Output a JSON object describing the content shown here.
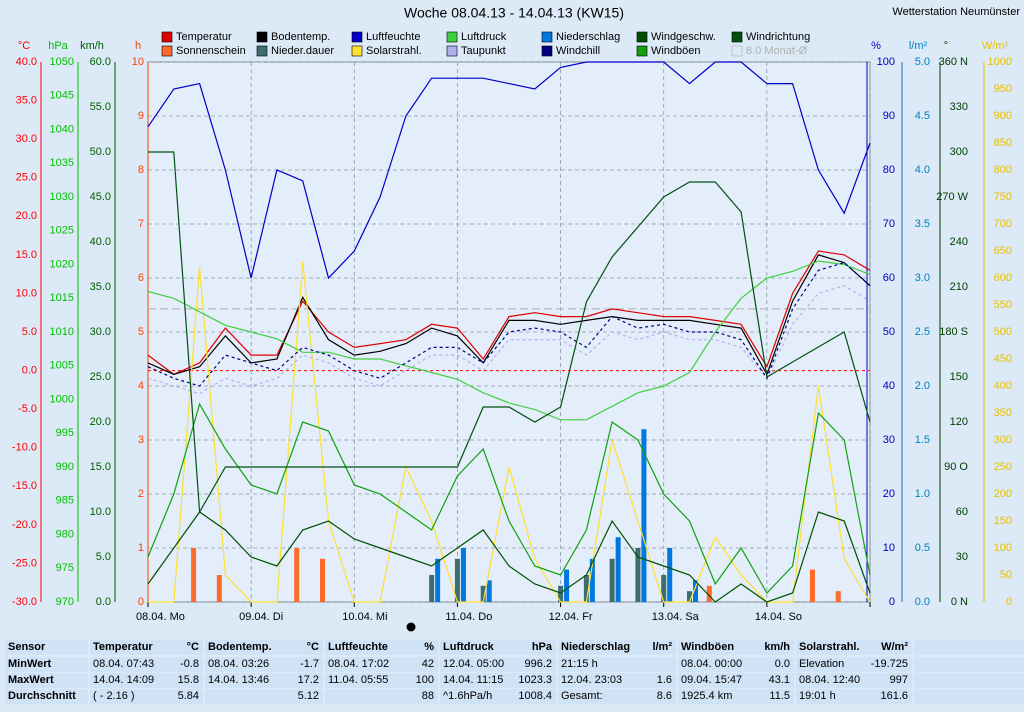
{
  "chart_data": {
    "type": "line",
    "title": "Woche 08.04.13 - 14.04.13 (KW15)",
    "station": "Wetterstation Neumünster",
    "xlim": [
      0,
      7
    ],
    "xticks": [
      {
        "value": 0,
        "label": "08.04. Mo"
      },
      {
        "value": 1,
        "label": "09.04. Di"
      },
      {
        "value": 2,
        "label": "10.04. Mi"
      },
      {
        "value": 3,
        "label": "11.04. Do"
      },
      {
        "value": 4,
        "label": "12.04. Fr"
      },
      {
        "value": 5,
        "label": "13.04. Sa"
      },
      {
        "value": 6,
        "label": "14.04. So"
      },
      {
        "value": 7,
        "label": ""
      }
    ],
    "grid": true,
    "axes": [
      {
        "unit": "°C",
        "side": "left",
        "color": "#ff0000",
        "lim": [
          -30,
          40
        ],
        "ticks": [
          {
            "value": 40,
            "label": "40.0"
          },
          {
            "value": 35,
            "label": "35.0"
          },
          {
            "value": 30,
            "label": "30.0"
          },
          {
            "value": 25,
            "label": "25.0"
          },
          {
            "value": 20,
            "label": "20.0"
          },
          {
            "value": 15,
            "label": "15.0"
          },
          {
            "value": 10,
            "label": "10.0"
          },
          {
            "value": 5,
            "label": "5.0"
          },
          {
            "value": 0,
            "label": "0.0"
          },
          {
            "value": -5,
            "label": "-5.0"
          },
          {
            "value": -10,
            "label": "-10.0"
          },
          {
            "value": -15,
            "label": "-15.0"
          },
          {
            "value": -20,
            "label": "-20.0"
          },
          {
            "value": -25,
            "label": "-25.0"
          },
          {
            "value": -30,
            "label": "-30.0"
          }
        ]
      },
      {
        "unit": "hPa",
        "side": "left",
        "color": "#00c000",
        "lim": [
          970,
          1050
        ],
        "ticks": [
          1050,
          1045,
          1040,
          1035,
          1030,
          1025,
          1020,
          1015,
          1010,
          1005,
          1000,
          995,
          990,
          985,
          980,
          975,
          970
        ]
      },
      {
        "unit": "km/h",
        "side": "left",
        "color": "#006000",
        "lim": [
          0,
          60
        ],
        "ticks": [
          {
            "value": 60,
            "label": "60.0"
          },
          {
            "value": 55,
            "label": "55.0"
          },
          {
            "value": 50,
            "label": "50.0"
          },
          {
            "value": 45,
            "label": "45.0"
          },
          {
            "value": 40,
            "label": "40.0"
          },
          {
            "value": 35,
            "label": "35.0"
          },
          {
            "value": 30,
            "label": "30.0"
          },
          {
            "value": 25,
            "label": "25.0"
          },
          {
            "value": 20,
            "label": "20.0"
          },
          {
            "value": 15,
            "label": "15.0"
          },
          {
            "value": 10,
            "label": "10.0"
          },
          {
            "value": 5,
            "label": "5.0"
          },
          {
            "value": 0,
            "label": "0.0"
          }
        ]
      },
      {
        "unit": "h",
        "side": "left",
        "color": "#ff4000",
        "lim": [
          0,
          10
        ],
        "ticks": [
          10,
          9,
          8,
          7,
          6,
          5,
          4,
          3,
          2,
          1,
          0
        ]
      },
      {
        "unit": "%",
        "side": "right",
        "color": "#0000c0",
        "lim": [
          0,
          100
        ],
        "ticks": [
          100,
          90,
          80,
          70,
          60,
          50,
          40,
          30,
          20,
          10,
          0
        ]
      },
      {
        "unit": "l/m²",
        "side": "right",
        "color": "#0080c0",
        "lim": [
          0,
          5
        ],
        "ticks": [
          {
            "value": 5,
            "label": "5.0"
          },
          4.5,
          {
            "value": 4,
            "label": "4.0"
          },
          3.5,
          {
            "value": 3,
            "label": "3.0"
          },
          2.5,
          {
            "value": 2,
            "label": "2.0"
          },
          1.5,
          {
            "value": 1,
            "label": "1.0"
          },
          0.5,
          {
            "value": 0,
            "label": "0.0"
          }
        ]
      },
      {
        "unit": "°",
        "side": "right",
        "color": "#004000",
        "lim": [
          0,
          360
        ],
        "ticks": [
          {
            "value": 360,
            "label": "360 N"
          },
          330,
          300,
          {
            "value": 270,
            "label": "270 W"
          },
          240,
          210,
          {
            "value": 180,
            "label": "180 S"
          },
          150,
          120,
          {
            "value": 90,
            "label": "90 O"
          },
          60,
          30,
          {
            "value": 0,
            "label": "0 N"
          }
        ]
      },
      {
        "unit": "W/m²",
        "side": "right",
        "color": "#e8c000",
        "lim": [
          0,
          1000
        ],
        "ticks": [
          1000,
          950,
          900,
          850,
          800,
          750,
          700,
          650,
          600,
          550,
          500,
          450,
          400,
          350,
          300,
          250,
          200,
          150,
          100,
          50,
          0
        ]
      }
    ],
    "x": [
      0,
      0.25,
      0.5,
      0.75,
      1,
      1.25,
      1.5,
      1.75,
      2,
      2.25,
      2.5,
      2.75,
      3,
      3.25,
      3.5,
      3.75,
      4,
      4.25,
      4.5,
      4.75,
      5,
      5.25,
      5.5,
      5.75,
      6,
      6.25,
      6.5,
      6.75,
      7
    ],
    "series": [
      {
        "name": "Temperatur",
        "color": "#e00000",
        "axis": "°C",
        "style": "line",
        "values": [
          2,
          -0.5,
          1,
          5.5,
          2,
          2,
          9,
          5,
          3,
          3.5,
          4,
          6,
          5.5,
          1.5,
          7,
          7.5,
          7,
          7,
          8,
          7.5,
          7,
          7,
          6.5,
          6,
          0.5,
          10,
          15.5,
          15,
          13
        ]
      },
      {
        "name": "Sonnenschein",
        "color": "#ff6a2a",
        "axis": "h",
        "style": "bar",
        "values": [
          0,
          0,
          1,
          0.5,
          0,
          0,
          1,
          0.8,
          0,
          0,
          0,
          0,
          0,
          0,
          0,
          0,
          0,
          0,
          0,
          0,
          0,
          0,
          0.3,
          0,
          0,
          0,
          0.6,
          0.2,
          0
        ]
      },
      {
        "name": "Bodentemp.",
        "color": "#000000",
        "axis": "°C",
        "style": "line",
        "values": [
          1,
          -0.5,
          0.5,
          4.5,
          1,
          1.5,
          9.5,
          4,
          2,
          2.5,
          3.5,
          5.5,
          4.5,
          1,
          6.5,
          6.5,
          6,
          6.5,
          7,
          6.5,
          6.5,
          6.5,
          6,
          5.5,
          -0.5,
          9,
          15,
          14,
          11
        ]
      },
      {
        "name": "Nieder.dauer",
        "color": "#3c6e6e",
        "axis": "h",
        "style": "bar",
        "values": [
          0,
          0,
          0,
          0,
          0,
          0,
          0,
          0,
          0,
          0,
          0,
          0.5,
          0.8,
          0.3,
          0,
          0,
          0.3,
          0.5,
          0.8,
          1,
          0.5,
          0.2,
          0,
          0,
          0,
          0,
          0,
          0,
          0
        ]
      },
      {
        "name": "Luftfeuchte",
        "color": "#0000c8",
        "axis": "%",
        "style": "line",
        "values": [
          88,
          95,
          96,
          80,
          60,
          80,
          78,
          60,
          65,
          75,
          90,
          97,
          97,
          97,
          96,
          95,
          99,
          100,
          100,
          100,
          100,
          96,
          100,
          100,
          96,
          96,
          80,
          72,
          85
        ]
      },
      {
        "name": "Solarstrahl.",
        "color": "#ffe030",
        "axis": "W/m²",
        "style": "line",
        "values": [
          0,
          0,
          620,
          50,
          0,
          0,
          630,
          150,
          0,
          0,
          250,
          150,
          0,
          0,
          250,
          80,
          0,
          0,
          300,
          150,
          0,
          0,
          120,
          50,
          0,
          0,
          400,
          80,
          0
        ]
      },
      {
        "name": "Luftdruck",
        "color": "#40d040",
        "axis": "hPa",
        "style": "line",
        "values": [
          1016,
          1015,
          1013,
          1011,
          1010,
          1009,
          1007,
          1007,
          1006,
          1006,
          1005,
          1004,
          1003,
          1001,
          999.5,
          998.5,
          997,
          997,
          999,
          1001,
          1002,
          1004,
          1010,
          1015,
          1018,
          1019,
          1020.5,
          1020,
          1018.5
        ]
      },
      {
        "name": "Taupunkt",
        "color": "#b0b0f0",
        "axis": "°C",
        "style": "dashed",
        "values": [
          -1,
          -2,
          -3,
          -1,
          -2,
          -1,
          2,
          1,
          -1,
          -2,
          0,
          2,
          2,
          0,
          4,
          4,
          4,
          2,
          5,
          4,
          5,
          4,
          4,
          3,
          -1,
          6,
          10,
          11,
          9
        ]
      },
      {
        "name": "Niederschlag",
        "color": "#0078e0",
        "axis": "l/m²",
        "style": "bar",
        "values": [
          0,
          0,
          0,
          0,
          0,
          0,
          0,
          0,
          0,
          0,
          0,
          0.4,
          0.5,
          0.2,
          0,
          0,
          0.3,
          0.4,
          0.6,
          1.6,
          0.5,
          0.2,
          0,
          0,
          0,
          0,
          0,
          0,
          0
        ]
      },
      {
        "name": "Windchill",
        "color": "#000080",
        "axis": "°C",
        "style": "dashed",
        "values": [
          0.5,
          -1,
          -2,
          2,
          1,
          0,
          3,
          2,
          0,
          -1,
          1,
          3,
          3,
          1,
          5,
          5.5,
          5,
          3,
          7,
          5.5,
          6,
          5,
          5,
          4,
          -1,
          8,
          13,
          14,
          11
        ]
      },
      {
        "name": "Windgeschw.",
        "color": "#005000",
        "axis": "km/h",
        "style": "line",
        "values": [
          2,
          6,
          10,
          8,
          5,
          4,
          8,
          9,
          7,
          6,
          5,
          4,
          6,
          8,
          4,
          2,
          1,
          3,
          9,
          5,
          4,
          3,
          0,
          2,
          0,
          1,
          10,
          9,
          1
        ]
      },
      {
        "name": "Windböen",
        "color": "#10a010",
        "axis": "km/h",
        "style": "line",
        "values": [
          5,
          12,
          22,
          17,
          13,
          12,
          20,
          19,
          13,
          12,
          10,
          8,
          14,
          17,
          9,
          4,
          3,
          8,
          20,
          18,
          12,
          9,
          2,
          6,
          1,
          4,
          21,
          18,
          3
        ]
      },
      {
        "name": "Windrichtung",
        "color": "#005010",
        "axis": "°",
        "style": "line",
        "values": [
          300,
          300,
          60,
          90,
          90,
          90,
          90,
          90,
          90,
          90,
          90,
          90,
          90,
          130,
          130,
          120,
          130,
          200,
          230,
          250,
          270,
          280,
          280,
          260,
          150,
          160,
          170,
          180,
          120
        ]
      }
    ],
    "monthly_mean": {
      "value": 8,
      "label": "8.0 Monat-Ø",
      "axis": "°C"
    }
  },
  "table": {
    "header": "Sensor",
    "row_labels": [
      "MinWert",
      "MaxWert",
      "Durchschnitt"
    ],
    "groups": [
      {
        "name": "Temperatur",
        "unit": "°C",
        "rows": [
          [
            "08.04.  07:43",
            "-0.8"
          ],
          [
            "14.04.  14:09",
            "15.8"
          ],
          [
            "( - 2.16 )",
            "5.84"
          ]
        ]
      },
      {
        "name": "Bodentemp.",
        "unit": "°C",
        "rows": [
          [
            "08.04.  03:26",
            "-1.7"
          ],
          [
            "14.04.  13:46",
            "17.2"
          ],
          [
            null,
            "5.12"
          ]
        ]
      },
      {
        "name": "Luftfeuchte",
        "unit": "%",
        "rows": [
          [
            "08.04.  17:02",
            "42"
          ],
          [
            "11.04.  05:55",
            "100"
          ],
          [
            null,
            "88"
          ]
        ]
      },
      {
        "name": "Luftdruck",
        "unit": "hPa",
        "rows": [
          [
            "12.04.  05:00",
            "996.2"
          ],
          [
            "14.04.  11:15",
            "1023.3"
          ],
          [
            "^1.6hPa/h",
            "1008.4"
          ]
        ]
      },
      {
        "name": "Niederschlag",
        "unit": "l/m²",
        "rows": [
          [
            "21:15 h",
            null
          ],
          [
            "12.04.  23:03",
            "1.6"
          ],
          [
            "Gesamt:",
            "8.6"
          ]
        ]
      },
      {
        "name": "Windböen",
        "unit": "km/h",
        "rows": [
          [
            "08.04.  00:00",
            "0.0"
          ],
          [
            "09.04.  15:47",
            "43.1"
          ],
          [
            "1925.4 km",
            "11.5"
          ]
        ]
      },
      {
        "name": "Solarstrahl.",
        "unit": "W/m²",
        "rows": [
          [
            "Elevation",
            "-19.725"
          ],
          [
            "08.04.  12:40",
            "997"
          ],
          [
            "19:01 h",
            "161.6"
          ]
        ]
      }
    ]
  }
}
